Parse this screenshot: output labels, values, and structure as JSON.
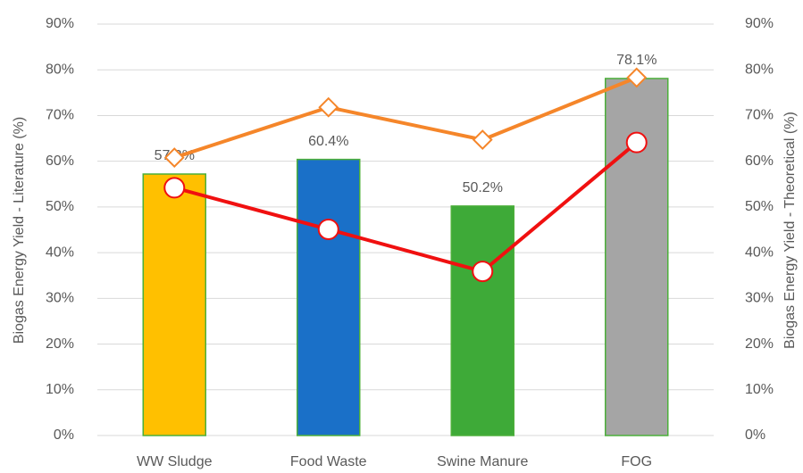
{
  "chart_data": {
    "type": "bar",
    "ylabel": "Biogas Energy Yield - Literature (%)",
    "y2label": "Biogas Energy Yield - Theoretical (%)",
    "categories": [
      "WW Sludge",
      "Food Waste",
      "Swine Manure",
      "FOG"
    ],
    "series": [
      {
        "type": "bar",
        "values": [
          57.2,
          60.4,
          50.2,
          78.1
        ],
        "value_labels": [
          "57.2%",
          "60.4%",
          "50.2%",
          "78.1%"
        ],
        "colors": [
          "#ffc000",
          "#1a70c8",
          "#3eaa38",
          "#a5a5a5"
        ],
        "edgecolor": "#4caf3a"
      },
      {
        "type": "line",
        "axis": "y2",
        "marker": "diamond",
        "color": "#f5862a",
        "values": [
          60.8,
          71.8,
          64.7,
          78.3
        ]
      },
      {
        "type": "line",
        "axis": "y2",
        "marker": "circle",
        "color": "#f01010",
        "values": [
          54.2,
          45.1,
          35.9,
          64.1
        ]
      }
    ],
    "ylim": [
      0,
      90
    ],
    "yticks": [
      {
        "value": 0,
        "label": "0%"
      },
      {
        "value": 10,
        "label": "10%"
      },
      {
        "value": 20,
        "label": "20%"
      },
      {
        "value": 30,
        "label": "30%"
      },
      {
        "value": 40,
        "label": "40%"
      },
      {
        "value": 50,
        "label": "50%"
      },
      {
        "value": 60,
        "label": "60%"
      },
      {
        "value": 70,
        "label": "70%"
      },
      {
        "value": 80,
        "label": "80%"
      },
      {
        "value": 90,
        "label": "90%"
      }
    ],
    "y2lim": [
      0,
      90
    ],
    "y2ticks": [
      {
        "value": 0,
        "label": "0%"
      },
      {
        "value": 10,
        "label": "10%"
      },
      {
        "value": 20,
        "label": "20%"
      },
      {
        "value": 30,
        "label": "30%"
      },
      {
        "value": 40,
        "label": "40%"
      },
      {
        "value": 50,
        "label": "50%"
      },
      {
        "value": 60,
        "label": "60%"
      },
      {
        "value": 70,
        "label": "70%"
      },
      {
        "value": 80,
        "label": "80%"
      },
      {
        "value": 90,
        "label": "90%"
      }
    ],
    "grid": true
  }
}
